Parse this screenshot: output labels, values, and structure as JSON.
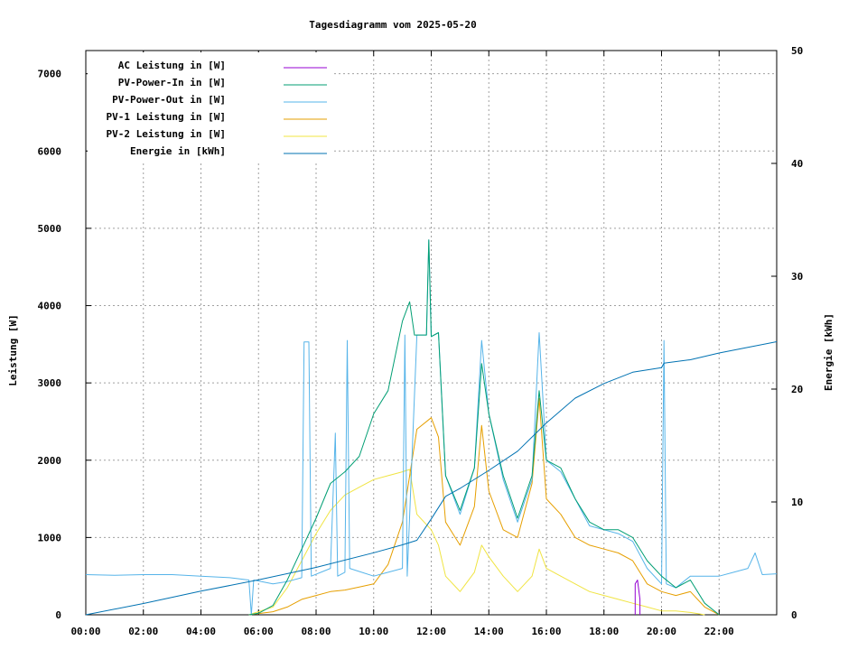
{
  "chart_data": {
    "type": "line",
    "title": "Tagesdiagramm vom 2025-05-20",
    "xlabel": "",
    "ylabel": "Leistung [W]",
    "y2label": "Energie [kWh]",
    "xlim": [
      "00:00",
      "24:00"
    ],
    "ylim": [
      0,
      7300
    ],
    "y2lim": [
      0,
      50
    ],
    "x_ticks": [
      "00:00",
      "02:00",
      "04:00",
      "06:00",
      "08:00",
      "10:00",
      "12:00",
      "14:00",
      "16:00",
      "18:00",
      "20:00",
      "22:00"
    ],
    "y_ticks": [
      0,
      1000,
      2000,
      3000,
      4000,
      5000,
      6000,
      7000
    ],
    "y2_ticks": [
      0,
      10,
      20,
      30,
      40,
      50
    ],
    "grid": true,
    "legend_position": "top-left",
    "colors": {
      "ac": "#9400d3",
      "pv_in": "#009e73",
      "pv_out": "#56b4e9",
      "pv1": "#e69f00",
      "pv2": "#f0e442",
      "energy": "#0072b2"
    },
    "series": [
      {
        "name": "AC Leistung in [W]",
        "axis": "left",
        "color": "#9400d3",
        "points": [
          [
            "19:05",
            0
          ],
          [
            "19:05",
            400
          ],
          [
            "19:10",
            450
          ],
          [
            "19:15",
            200
          ],
          [
            "19:15",
            0
          ]
        ]
      },
      {
        "name": "PV-Power-In in [W]",
        "axis": "left",
        "color": "#009e73",
        "points": [
          [
            "05:40",
            0
          ],
          [
            "06:00",
            20
          ],
          [
            "06:30",
            120
          ],
          [
            "07:00",
            450
          ],
          [
            "07:30",
            850
          ],
          [
            "08:00",
            1250
          ],
          [
            "08:30",
            1700
          ],
          [
            "09:00",
            1850
          ],
          [
            "09:30",
            2050
          ],
          [
            "10:00",
            2600
          ],
          [
            "10:30",
            2900
          ],
          [
            "11:00",
            3800
          ],
          [
            "11:15",
            4050
          ],
          [
            "11:25",
            3620
          ],
          [
            "11:50",
            3620
          ],
          [
            "11:55",
            4850
          ],
          [
            "12:00",
            3600
          ],
          [
            "12:15",
            3650
          ],
          [
            "12:30",
            1800
          ],
          [
            "13:00",
            1350
          ],
          [
            "13:30",
            1900
          ],
          [
            "13:45",
            3250
          ],
          [
            "14:00",
            2600
          ],
          [
            "14:30",
            1800
          ],
          [
            "15:00",
            1250
          ],
          [
            "15:30",
            1800
          ],
          [
            "15:45",
            2900
          ],
          [
            "16:00",
            2000
          ],
          [
            "16:30",
            1900
          ],
          [
            "17:00",
            1500
          ],
          [
            "17:30",
            1200
          ],
          [
            "18:00",
            1100
          ],
          [
            "18:30",
            1100
          ],
          [
            "19:00",
            1000
          ],
          [
            "19:30",
            700
          ],
          [
            "20:00",
            500
          ],
          [
            "20:30",
            350
          ],
          [
            "21:00",
            450
          ],
          [
            "21:30",
            150
          ],
          [
            "22:00",
            0
          ]
        ]
      },
      {
        "name": "PV-Power-Out in [W]",
        "axis": "left",
        "color": "#56b4e9",
        "points": [
          [
            "00:00",
            520
          ],
          [
            "01:00",
            510
          ],
          [
            "02:00",
            520
          ],
          [
            "03:00",
            520
          ],
          [
            "04:00",
            500
          ],
          [
            "05:00",
            480
          ],
          [
            "05:40",
            450
          ],
          [
            "05:45",
            0
          ],
          [
            "05:50",
            450
          ],
          [
            "06:30",
            400
          ],
          [
            "07:00",
            430
          ],
          [
            "07:30",
            480
          ],
          [
            "07:35",
            3530
          ],
          [
            "07:45",
            3530
          ],
          [
            "07:50",
            500
          ],
          [
            "08:30",
            600
          ],
          [
            "08:40",
            2350
          ],
          [
            "08:45",
            500
          ],
          [
            "09:00",
            550
          ],
          [
            "09:05",
            3550
          ],
          [
            "09:10",
            600
          ],
          [
            "10:00",
            500
          ],
          [
            "11:00",
            600
          ],
          [
            "11:05",
            3620
          ],
          [
            "11:10",
            500
          ],
          [
            "11:30",
            3620
          ],
          [
            "11:50",
            3620
          ],
          [
            "11:55",
            4850
          ],
          [
            "12:00",
            3600
          ],
          [
            "12:15",
            3650
          ],
          [
            "12:30",
            1800
          ],
          [
            "13:00",
            1300
          ],
          [
            "13:30",
            1900
          ],
          [
            "13:45",
            3550
          ],
          [
            "14:00",
            2600
          ],
          [
            "14:30",
            1750
          ],
          [
            "15:00",
            1200
          ],
          [
            "15:30",
            1750
          ],
          [
            "15:45",
            3650
          ],
          [
            "16:00",
            2000
          ],
          [
            "16:30",
            1850
          ],
          [
            "17:00",
            1500
          ],
          [
            "17:30",
            1150
          ],
          [
            "18:00",
            1100
          ],
          [
            "18:30",
            1050
          ],
          [
            "19:00",
            950
          ],
          [
            "19:30",
            600
          ],
          [
            "20:00",
            400
          ],
          [
            "20:05",
            3550
          ],
          [
            "20:10",
            400
          ],
          [
            "20:30",
            350
          ],
          [
            "21:00",
            500
          ],
          [
            "22:00",
            500
          ],
          [
            "23:00",
            600
          ],
          [
            "23:15",
            800
          ],
          [
            "23:30",
            520
          ],
          [
            "24:00",
            530
          ]
        ]
      },
      {
        "name": "PV-1 Leistung in [W]",
        "axis": "left",
        "color": "#e69f00",
        "points": [
          [
            "05:40",
            0
          ],
          [
            "06:30",
            40
          ],
          [
            "07:00",
            100
          ],
          [
            "07:30",
            200
          ],
          [
            "08:00",
            250
          ],
          [
            "08:30",
            300
          ],
          [
            "09:00",
            320
          ],
          [
            "09:30",
            360
          ],
          [
            "10:00",
            400
          ],
          [
            "10:30",
            650
          ],
          [
            "11:00",
            1200
          ],
          [
            "11:30",
            2400
          ],
          [
            "12:00",
            2550
          ],
          [
            "12:15",
            2300
          ],
          [
            "12:30",
            1200
          ],
          [
            "13:00",
            900
          ],
          [
            "13:30",
            1400
          ],
          [
            "13:45",
            2450
          ],
          [
            "14:00",
            1600
          ],
          [
            "14:30",
            1100
          ],
          [
            "15:00",
            1000
          ],
          [
            "15:30",
            1700
          ],
          [
            "15:45",
            2800
          ],
          [
            "16:00",
            1500
          ],
          [
            "16:30",
            1300
          ],
          [
            "17:00",
            1000
          ],
          [
            "17:30",
            900
          ],
          [
            "18:00",
            850
          ],
          [
            "18:30",
            800
          ],
          [
            "19:00",
            700
          ],
          [
            "19:30",
            400
          ],
          [
            "20:00",
            300
          ],
          [
            "20:30",
            250
          ],
          [
            "21:00",
            300
          ],
          [
            "21:30",
            100
          ],
          [
            "22:00",
            0
          ]
        ]
      },
      {
        "name": "PV-2 Leistung in [W]",
        "axis": "left",
        "color": "#f0e442",
        "points": [
          [
            "05:40",
            0
          ],
          [
            "06:30",
            100
          ],
          [
            "07:00",
            350
          ],
          [
            "07:30",
            700
          ],
          [
            "08:00",
            1050
          ],
          [
            "08:30",
            1350
          ],
          [
            "09:00",
            1550
          ],
          [
            "09:30",
            1650
          ],
          [
            "10:00",
            1750
          ],
          [
            "10:30",
            1800
          ],
          [
            "11:00",
            1850
          ],
          [
            "11:15",
            1880
          ],
          [
            "11:30",
            1300
          ],
          [
            "12:00",
            1100
          ],
          [
            "12:15",
            900
          ],
          [
            "12:30",
            500
          ],
          [
            "13:00",
            300
          ],
          [
            "13:30",
            550
          ],
          [
            "13:45",
            900
          ],
          [
            "14:00",
            750
          ],
          [
            "14:30",
            500
          ],
          [
            "15:00",
            300
          ],
          [
            "15:30",
            500
          ],
          [
            "15:45",
            850
          ],
          [
            "16:00",
            600
          ],
          [
            "16:30",
            500
          ],
          [
            "17:00",
            400
          ],
          [
            "17:30",
            300
          ],
          [
            "18:00",
            250
          ],
          [
            "18:30",
            200
          ],
          [
            "19:00",
            150
          ],
          [
            "19:30",
            100
          ],
          [
            "20:00",
            50
          ],
          [
            "20:30",
            50
          ],
          [
            "21:00",
            30
          ],
          [
            "21:30",
            0
          ]
        ]
      },
      {
        "name": "Energie in [kWh]",
        "axis": "right",
        "color": "#0072b2",
        "points": [
          [
            "00:00",
            0
          ],
          [
            "02:00",
            1
          ],
          [
            "04:00",
            2.1
          ],
          [
            "06:00",
            3.1
          ],
          [
            "08:00",
            4.2
          ],
          [
            "10:00",
            5.5
          ],
          [
            "11:00",
            6.2
          ],
          [
            "11:30",
            6.6
          ],
          [
            "12:00",
            8.5
          ],
          [
            "12:30",
            10.5
          ],
          [
            "13:00",
            11.2
          ],
          [
            "14:00",
            12.8
          ],
          [
            "15:00",
            14.5
          ],
          [
            "16:00",
            17
          ],
          [
            "17:00",
            19.2
          ],
          [
            "18:00",
            20.5
          ],
          [
            "19:00",
            21.5
          ],
          [
            "20:00",
            21.9
          ],
          [
            "20:05",
            22.3
          ],
          [
            "21:00",
            22.6
          ],
          [
            "22:00",
            23.2
          ],
          [
            "23:00",
            23.7
          ],
          [
            "24:00",
            24.2
          ]
        ]
      }
    ]
  }
}
